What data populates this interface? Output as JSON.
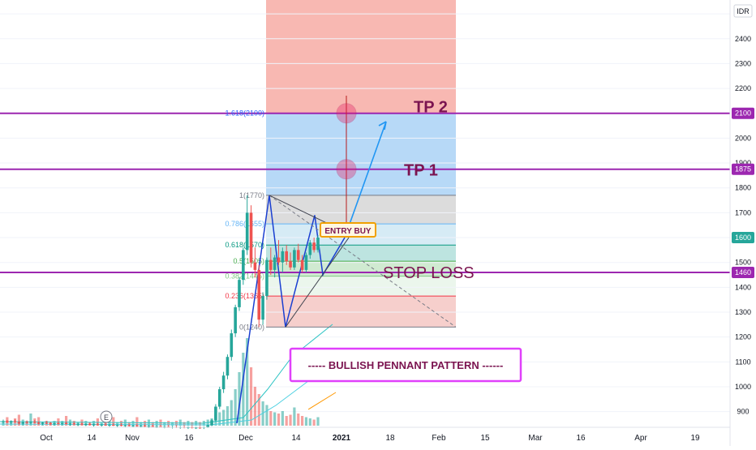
{
  "currency": "IDR",
  "colors": {
    "up": "#26a69a",
    "down": "#ef5350",
    "levelLine": "#9c27b0",
    "annotation": "#7b1450",
    "entryBox": "#f0a000",
    "banner": "#e040fb",
    "tpZone": "#f8b4ae",
    "targetZone": "#b3d7f7",
    "fib": [
      "#787b86",
      "#f23645",
      "#81c784",
      "#4caf50",
      "#089981",
      "#64b5f6",
      "#787b86",
      "#2962ff"
    ]
  },
  "chart_data": {
    "type": "candlestick",
    "ylim": [
      830,
      2560
    ],
    "yticks": [
      900,
      1000,
      1100,
      1200,
      1300,
      1400,
      1500,
      1600,
      1700,
      1800,
      1900,
      2000,
      2100,
      2200,
      2300,
      2400,
      2500
    ],
    "xticks": [
      "Oct",
      "14",
      "Nov",
      "16",
      "Dec",
      "14",
      "2021",
      "18",
      "Feb",
      "15",
      "Mar",
      "16",
      "Apr",
      "19"
    ],
    "price_labels": [
      {
        "value": 2100,
        "text": "2100",
        "color": "#9c27b0"
      },
      {
        "value": 1875,
        "text": "1875",
        "color": "#9c27b0"
      },
      {
        "value": 1600,
        "text": "1600",
        "color": "#26a69a"
      },
      {
        "value": 1460,
        "text": "1460",
        "color": "#9c27b0"
      }
    ],
    "horizontal_levels": [
      {
        "value": 2100,
        "label": "TP 2"
      },
      {
        "value": 1875,
        "label": "TP 1"
      },
      {
        "value": 1460,
        "label": "STOP LOSS"
      }
    ],
    "fibonacci": [
      {
        "ratio": "0",
        "price": 1240,
        "label": "0(1240)"
      },
      {
        "ratio": "0.236",
        "price": 1365,
        "label": "0.236(1365)"
      },
      {
        "ratio": "0.382",
        "price": 1445,
        "label": "0.382(1445)"
      },
      {
        "ratio": "0.5",
        "price": 1505,
        "label": "0.5(1505)"
      },
      {
        "ratio": "0.618",
        "price": 1570,
        "label": "0.618(1570)"
      },
      {
        "ratio": "0.786",
        "price": 1655,
        "label": "0.786(1655)"
      },
      {
        "ratio": "1",
        "price": 1770,
        "label": "1(1770)"
      },
      {
        "ratio": "1.618",
        "price": 2100,
        "label": "1.618(2100)"
      }
    ],
    "candles": [
      {
        "o": 860,
        "h": 868,
        "l": 852,
        "c": 862,
        "v": 0.15
      },
      {
        "o": 862,
        "h": 866,
        "l": 854,
        "c": 857,
        "v": 0.35
      },
      {
        "o": 857,
        "h": 865,
        "l": 850,
        "c": 861,
        "v": 0.2
      },
      {
        "o": 861,
        "h": 868,
        "l": 856,
        "c": 858,
        "v": 0.3
      },
      {
        "o": 858,
        "h": 862,
        "l": 848,
        "c": 852,
        "v": 0.45
      },
      {
        "o": 852,
        "h": 860,
        "l": 846,
        "c": 857,
        "v": 0.25
      },
      {
        "o": 857,
        "h": 864,
        "l": 852,
        "c": 855,
        "v": 0.2
      },
      {
        "o": 855,
        "h": 861,
        "l": 849,
        "c": 859,
        "v": 0.5
      },
      {
        "o": 859,
        "h": 866,
        "l": 853,
        "c": 856,
        "v": 0.3
      },
      {
        "o": 856,
        "h": 860,
        "l": 848,
        "c": 851,
        "v": 0.35
      },
      {
        "o": 851,
        "h": 858,
        "l": 846,
        "c": 855,
        "v": 0.15
      },
      {
        "o": 855,
        "h": 862,
        "l": 850,
        "c": 853,
        "v": 0.2
      },
      {
        "o": 853,
        "h": 858,
        "l": 846,
        "c": 849,
        "v": 0.15
      },
      {
        "o": 849,
        "h": 856,
        "l": 844,
        "c": 853,
        "v": 0.2
      },
      {
        "o": 853,
        "h": 860,
        "l": 848,
        "c": 851,
        "v": 0.3
      },
      {
        "o": 851,
        "h": 856,
        "l": 845,
        "c": 854,
        "v": 0.2
      },
      {
        "o": 854,
        "h": 860,
        "l": 848,
        "c": 850,
        "v": 0.4
      },
      {
        "o": 850,
        "h": 855,
        "l": 843,
        "c": 852,
        "v": 0.25
      },
      {
        "o": 852,
        "h": 858,
        "l": 847,
        "c": 849,
        "v": 0.2
      },
      {
        "o": 849,
        "h": 854,
        "l": 842,
        "c": 851,
        "v": 0.15
      },
      {
        "o": 851,
        "h": 857,
        "l": 846,
        "c": 848,
        "v": 0.25
      },
      {
        "o": 848,
        "h": 853,
        "l": 842,
        "c": 850,
        "v": 0.2
      },
      {
        "o": 850,
        "h": 856,
        "l": 845,
        "c": 847,
        "v": 0.15
      },
      {
        "o": 847,
        "h": 852,
        "l": 840,
        "c": 849,
        "v": 0.2
      },
      {
        "o": 849,
        "h": 855,
        "l": 844,
        "c": 846,
        "v": 0.3
      },
      {
        "o": 846,
        "h": 851,
        "l": 840,
        "c": 848,
        "v": 0.15
      },
      {
        "o": 848,
        "h": 854,
        "l": 843,
        "c": 845,
        "v": 0.2
      },
      {
        "o": 845,
        "h": 850,
        "l": 839,
        "c": 847,
        "v": 0.25
      },
      {
        "o": 847,
        "h": 853,
        "l": 842,
        "c": 844,
        "v": 0.35
      },
      {
        "o": 844,
        "h": 849,
        "l": 838,
        "c": 846,
        "v": 0.15
      },
      {
        "o": 846,
        "h": 852,
        "l": 841,
        "c": 843,
        "v": 0.2
      },
      {
        "o": 843,
        "h": 848,
        "l": 837,
        "c": 845,
        "v": 0.25
      },
      {
        "o": 845,
        "h": 851,
        "l": 840,
        "c": 842,
        "v": 0.15
      },
      {
        "o": 842,
        "h": 847,
        "l": 836,
        "c": 844,
        "v": 0.2
      },
      {
        "o": 844,
        "h": 850,
        "l": 839,
        "c": 841,
        "v": 0.35
      },
      {
        "o": 841,
        "h": 846,
        "l": 835,
        "c": 843,
        "v": 0.15
      },
      {
        "o": 843,
        "h": 849,
        "l": 838,
        "c": 840,
        "v": 0.2
      },
      {
        "o": 840,
        "h": 845,
        "l": 834,
        "c": 842,
        "v": 0.25
      },
      {
        "o": 842,
        "h": 848,
        "l": 837,
        "c": 839,
        "v": 0.15
      },
      {
        "o": 839,
        "h": 845,
        "l": 834,
        "c": 841,
        "v": 0.2
      },
      {
        "o": 841,
        "h": 847,
        "l": 836,
        "c": 838,
        "v": 0.25
      },
      {
        "o": 838,
        "h": 844,
        "l": 833,
        "c": 840,
        "v": 0.15
      },
      {
        "o": 840,
        "h": 846,
        "l": 835,
        "c": 837,
        "v": 0.2
      },
      {
        "o": 837,
        "h": 843,
        "l": 832,
        "c": 839,
        "v": 0.15
      },
      {
        "o": 839,
        "h": 845,
        "l": 834,
        "c": 836,
        "v": 0.2
      },
      {
        "o": 836,
        "h": 842,
        "l": 831,
        "c": 838,
        "v": 0.25
      },
      {
        "o": 838,
        "h": 844,
        "l": 833,
        "c": 835,
        "v": 0.15
      },
      {
        "o": 835,
        "h": 841,
        "l": 830,
        "c": 837,
        "v": 0.2
      },
      {
        "o": 837,
        "h": 843,
        "l": 832,
        "c": 834,
        "v": 0.15
      },
      {
        "o": 834,
        "h": 840,
        "l": 830,
        "c": 836,
        "v": 0.2
      },
      {
        "o": 836,
        "h": 842,
        "l": 831,
        "c": 835,
        "v": 0.15
      },
      {
        "o": 835,
        "h": 841,
        "l": 830,
        "c": 838,
        "v": 0.2
      },
      {
        "o": 838,
        "h": 848,
        "l": 834,
        "c": 845,
        "v": 0.25
      },
      {
        "o": 845,
        "h": 870,
        "l": 842,
        "c": 865,
        "v": 0.3
      },
      {
        "o": 865,
        "h": 930,
        "l": 860,
        "c": 920,
        "v": 0.45
      },
      {
        "o": 920,
        "h": 1000,
        "l": 910,
        "c": 990,
        "v": 0.55
      },
      {
        "o": 990,
        "h": 1060,
        "l": 975,
        "c": 1045,
        "v": 0.65
      },
      {
        "o": 1045,
        "h": 1130,
        "l": 1030,
        "c": 1120,
        "v": 0.8
      },
      {
        "o": 1120,
        "h": 1230,
        "l": 1105,
        "c": 1215,
        "v": 1.05
      },
      {
        "o": 1215,
        "h": 1330,
        "l": 1200,
        "c": 1320,
        "v": 1.5
      },
      {
        "o": 1320,
        "h": 1440,
        "l": 1305,
        "c": 1430,
        "v": 2.2
      },
      {
        "o": 1430,
        "h": 1560,
        "l": 1410,
        "c": 1550,
        "v": 3.0
      },
      {
        "o": 1550,
        "h": 1770,
        "l": 1530,
        "c": 1700,
        "v": 3.6
      },
      {
        "o": 1700,
        "h": 1730,
        "l": 1480,
        "c": 1500,
        "v": 2.4
      },
      {
        "o": 1500,
        "h": 1560,
        "l": 1440,
        "c": 1470,
        "v": 1.6
      },
      {
        "o": 1470,
        "h": 1490,
        "l": 1240,
        "c": 1270,
        "v": 1.3
      },
      {
        "o": 1270,
        "h": 1380,
        "l": 1250,
        "c": 1365,
        "v": 1.0
      },
      {
        "o": 1365,
        "h": 1520,
        "l": 1350,
        "c": 1510,
        "v": 0.85
      },
      {
        "o": 1510,
        "h": 1560,
        "l": 1450,
        "c": 1470,
        "v": 0.6
      },
      {
        "o": 1470,
        "h": 1530,
        "l": 1440,
        "c": 1520,
        "v": 0.55
      },
      {
        "o": 1520,
        "h": 1590,
        "l": 1490,
        "c": 1500,
        "v": 0.5
      },
      {
        "o": 1500,
        "h": 1560,
        "l": 1460,
        "c": 1545,
        "v": 0.6
      },
      {
        "o": 1545,
        "h": 1570,
        "l": 1490,
        "c": 1505,
        "v": 0.4
      },
      {
        "o": 1505,
        "h": 1540,
        "l": 1470,
        "c": 1480,
        "v": 0.45
      },
      {
        "o": 1480,
        "h": 1560,
        "l": 1470,
        "c": 1550,
        "v": 0.75
      },
      {
        "o": 1550,
        "h": 1575,
        "l": 1500,
        "c": 1510,
        "v": 0.5
      },
      {
        "o": 1510,
        "h": 1530,
        "l": 1460,
        "c": 1470,
        "v": 0.4
      },
      {
        "o": 1470,
        "h": 1540,
        "l": 1460,
        "c": 1530,
        "v": 0.35
      },
      {
        "o": 1530,
        "h": 1590,
        "l": 1515,
        "c": 1580,
        "v": 0.3
      },
      {
        "o": 1580,
        "h": 1600,
        "l": 1540,
        "c": 1550,
        "v": 0.25
      },
      {
        "o": 1550,
        "h": 1610,
        "l": 1540,
        "c": 1600,
        "v": 0.35
      }
    ]
  },
  "annotations": {
    "tp2": "TP 2",
    "tp1": "TP 1",
    "stop_loss": "STOP LOSS",
    "entry": "ENTRY BUY",
    "pattern": "----- BULLISH PENNANT PATTERN ------",
    "earnings_badge": "E"
  }
}
